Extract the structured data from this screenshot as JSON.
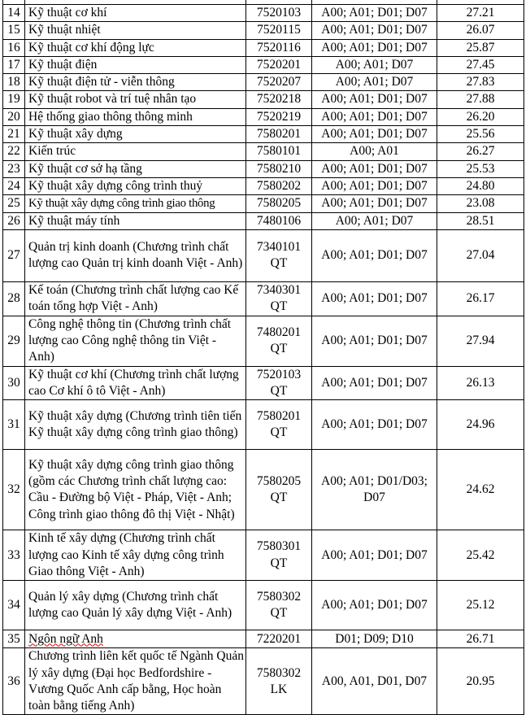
{
  "rows": [
    {
      "no": "14",
      "name": "Kỹ thuật cơ khí",
      "code": "7520103",
      "combos": "A00; A01; D01; D07",
      "score": "27.21"
    },
    {
      "no": "15",
      "name": "Kỹ thuật nhiệt",
      "code": "7520115",
      "combos": "A00; A01; D01; D07",
      "score": "26.07"
    },
    {
      "no": "16",
      "name": "Kỹ thuật cơ khí động lực",
      "code": "7520116",
      "combos": "A00; A01; D01; D07",
      "score": "25.87"
    },
    {
      "no": "17",
      "name": "Kỹ thuật điện",
      "code": "7520201",
      "combos": "A00; A01; D07",
      "score": "27.45"
    },
    {
      "no": "18",
      "name": "Kỹ thuật điện tử -  viễn thông",
      "code": "7520207",
      "combos": "A00; A01; D07",
      "score": "27.83"
    },
    {
      "no": "19",
      "name": "Kỹ thuật robot và trí tuệ nhân tạo",
      "code": "7520218",
      "combos": "A00; A01; D01; D07",
      "score": "27.88"
    },
    {
      "no": "20",
      "name": "Hệ thống giao thông thông minh",
      "code": "7520219",
      "combos": "A00; A01; D01; D07",
      "score": "26.20"
    },
    {
      "no": "21",
      "name": "Kỹ thuật xây dựng",
      "code": "7580201",
      "combos": "A00; A01; D01; D07",
      "score": "25.56"
    },
    {
      "no": "22",
      "name": "Kiến trúc",
      "code": "7580101",
      "combos": "A00; A01",
      "score": "26.27"
    },
    {
      "no": "23",
      "name": "Kỹ thuật cơ sở hạ tầng",
      "code": "7580210",
      "combos": "A00; A01; D01; D07",
      "score": "25.53"
    },
    {
      "no": "24",
      "name": "Kỹ thuật xây dựng công trình thuỷ",
      "code": "7580202",
      "combos": "A00; A01; D01; D07",
      "score": "24.80"
    },
    {
      "no": "25",
      "name": "Kỹ thuật xây dựng công trình giao thông",
      "code": "7580205",
      "combos": "A00; A01; D01; D07",
      "score": "23.08"
    },
    {
      "no": "26",
      "name": "Kỹ thuật máy tính",
      "code": "7480106",
      "combos": "A00; A01; D07",
      "score": "28.51"
    },
    {
      "no": "27",
      "name": "Quản trị kinh doanh (Chương trình chất lượng cao Quản trị kinh doanh Việt - Anh)",
      "code": "7340101 QT",
      "combos": "A00; A01; D01; D07",
      "score": "27.04"
    },
    {
      "no": "28",
      "name": "Kế toán (Chương trình chất lượng cao Kế toán tổng hợp Việt - Anh)",
      "code": "7340301 QT",
      "combos": "A00; A01; D01; D07",
      "score": "26.17"
    },
    {
      "no": "29",
      "name": "Công nghệ thông tin (Chương trình chất lượng cao Công nghệ thông tin Việt - Anh)",
      "code": "7480201 QT",
      "combos": "A00; A01; D01; D07",
      "score": "27.94"
    },
    {
      "no": "30",
      "name": "Kỹ thuật cơ khí (Chương trình chất lượng cao Cơ khí ô tô Việt - Anh)",
      "code": "7520103 QT",
      "combos": "A00; A01; D01; D07",
      "score": "26.13"
    },
    {
      "no": "31",
      "name": "Kỹ thuật xây dựng (Chương trình tiên tiến Kỹ thuật xây dựng công trình giao thông)",
      "code": "7580201 QT",
      "combos": "A00; A01; D01; D07",
      "score": "24.96"
    },
    {
      "no": "32",
      "name": "Kỹ thuật xây dựng công trình giao thông (gồm các Chương trình chất lượng cao: Cầu - Đường bộ Việt - Pháp, Việt - Anh; Công trình giao thông đô thị Việt - Nhật)",
      "code": "7580205 QT",
      "combos": "A00; A01; D01/D03; D07",
      "score": "24.62"
    },
    {
      "no": "33",
      "name": "Kinh tế xây dựng (Chương trình chất lượng cao Kinh tế xây dựng công trình Giao thông Việt - Anh)",
      "code": "7580301 QT",
      "combos": "A00; A01; D01; D07",
      "score": "25.42"
    },
    {
      "no": "34",
      "name": "Quản lý xây dựng (Chương trình chất lượng cao Quản lý xây dựng Việt - Anh)",
      "code": "7580302 QT",
      "combos": "A00; A01; D01; D07",
      "score": "25.12"
    },
    {
      "no": "35",
      "name": "Ngôn ngữ Anh",
      "code": "7220201",
      "combos": "D01; D09; D10",
      "score": "26.71"
    },
    {
      "no": "36",
      "name": "Chương trình liên kết quốc tế Ngành Quản lý xây dựng (Đại học Bedfordshire - Vương Quốc Anh cấp bằng, Học hoàn toàn bằng tiếng Anh)",
      "code": "7580302 LK",
      "combos": "A00, A01, D01, D07",
      "score": "20.95"
    }
  ]
}
